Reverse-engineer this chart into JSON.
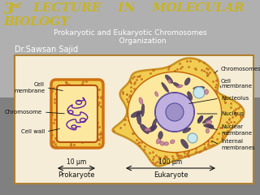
{
  "bg_color": "#909090",
  "title_color": "#c8b422",
  "text_color": "#e8e8e8",
  "box_bg": "#f5edd8",
  "box_border": "#b08030",
  "cell_outer": "#f0d055",
  "cell_outer_edge": "#c89020",
  "cell_inner": "#fde8a0",
  "cell_inner_edge": "#c06800",
  "dot_color": "#c87820",
  "chrom_color": "#6020a0",
  "nucleus_fill": "#c0b0e0",
  "nucleus_edge": "#7050b0",
  "nucleolus_fill": "#a090c8",
  "nucleolus_edge": "#6050a0",
  "vacuole_fill": "#cce8f0",
  "vacuole_edge": "#8090b0",
  "euk_chrom_fill": "#504870",
  "label_color": "#101010",
  "scale_color": "#101010",
  "prokaryote_label": "Prokaryote",
  "eukaryote_label": "Eukaryote",
  "scale1": "10 μm",
  "scale2": "100 μm"
}
